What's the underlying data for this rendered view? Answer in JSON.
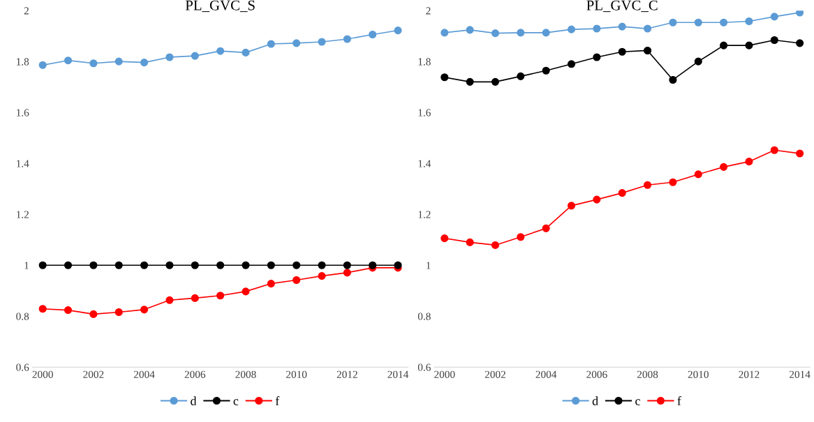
{
  "chart_data": [
    {
      "type": "line",
      "title": "PL_GVC_S",
      "x": [
        2000,
        2001,
        2002,
        2003,
        2004,
        2005,
        2006,
        2007,
        2008,
        2009,
        2010,
        2011,
        2012,
        2013,
        2014
      ],
      "xlim": [
        1999.6,
        2014.4
      ],
      "xticks": [
        2000,
        2002,
        2004,
        2006,
        2008,
        2010,
        2012,
        2014
      ],
      "ylim": [
        0.6,
        2
      ],
      "yticks": [
        0.6,
        0.8,
        1,
        1.2,
        1.4,
        1.6,
        1.8,
        2
      ],
      "grid": false,
      "legend": "bottom",
      "marker": "circle",
      "line_style": "solid",
      "series": [
        {
          "name": "d",
          "color": "#5b9bd5",
          "values": [
            1.786,
            1.804,
            1.793,
            1.8,
            1.796,
            1.817,
            1.822,
            1.841,
            1.835,
            1.869,
            1.872,
            1.877,
            1.888,
            1.906,
            1.922
          ]
        },
        {
          "name": "c",
          "color": "#000000",
          "values": [
            1,
            1,
            1,
            1,
            1,
            1,
            1,
            1,
            1,
            1,
            1,
            1,
            1,
            1,
            1
          ]
        },
        {
          "name": "f",
          "color": "#ff0000",
          "values": [
            0.829,
            0.824,
            0.808,
            0.816,
            0.826,
            0.863,
            0.871,
            0.881,
            0.897,
            0.928,
            0.942,
            0.958,
            0.971,
            0.99,
            0.99
          ]
        }
      ]
    },
    {
      "type": "line",
      "title": "PL_GVC_C",
      "x": [
        2000,
        2001,
        2002,
        2003,
        2004,
        2005,
        2006,
        2007,
        2008,
        2009,
        2010,
        2011,
        2012,
        2013,
        2014
      ],
      "xlim": [
        1999.6,
        2014.4
      ],
      "xticks": [
        2000,
        2002,
        2004,
        2006,
        2008,
        2010,
        2012,
        2014
      ],
      "ylim": [
        0.6,
        2
      ],
      "yticks": [
        0.6,
        0.8,
        1,
        1.2,
        1.4,
        1.6,
        1.8,
        2
      ],
      "grid": false,
      "legend": "bottom",
      "marker": "circle",
      "line_style": "solid",
      "series": [
        {
          "name": "d",
          "color": "#5b9bd5",
          "values": [
            1.913,
            1.924,
            1.911,
            1.913,
            1.913,
            1.926,
            1.929,
            1.937,
            1.929,
            1.953,
            1.953,
            1.953,
            1.958,
            1.976,
            1.992
          ]
        },
        {
          "name": "c",
          "color": "#000000",
          "values": [
            1.738,
            1.72,
            1.72,
            1.742,
            1.764,
            1.79,
            1.817,
            1.838,
            1.843,
            1.728,
            1.8,
            1.863,
            1.863,
            1.884,
            1.872
          ]
        },
        {
          "name": "f",
          "color": "#ff0000",
          "values": [
            1.106,
            1.09,
            1.079,
            1.111,
            1.145,
            1.234,
            1.258,
            1.284,
            1.315,
            1.326,
            1.357,
            1.386,
            1.407,
            1.452,
            1.439
          ]
        }
      ]
    }
  ]
}
